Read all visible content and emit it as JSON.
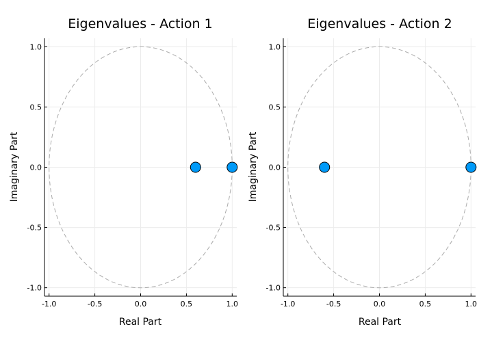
{
  "chart_data": [
    {
      "type": "scatter",
      "title": "Eigenvalues - Action 1",
      "xlabel": "Real Part",
      "ylabel": "Imaginary Part",
      "xlim": [
        -1.05,
        1.05
      ],
      "ylim": [
        -1.07,
        1.07
      ],
      "xticks": [
        -1.0,
        -0.5,
        0.0,
        0.5,
        1.0
      ],
      "xtick_labels": [
        "-1.0",
        "-0.5",
        "0.0",
        "0.5",
        "1.0"
      ],
      "yticks": [
        -1.0,
        -0.5,
        0.0,
        0.5,
        1.0
      ],
      "ytick_labels": [
        "-1.0",
        "-0.5",
        "0.0",
        "0.5",
        "1.0"
      ],
      "grid": true,
      "reference_curve": "unit-circle-dashed",
      "points": [
        {
          "x": 0.6,
          "y": 0.0
        },
        {
          "x": 1.0,
          "y": 0.0
        }
      ]
    },
    {
      "type": "scatter",
      "title": "Eigenvalues - Action 2",
      "xlabel": "Real Part",
      "ylabel": "Imaginary Part",
      "xlim": [
        -1.05,
        1.05
      ],
      "ylim": [
        -1.07,
        1.07
      ],
      "xticks": [
        -1.0,
        -0.5,
        0.0,
        0.5,
        1.0
      ],
      "xtick_labels": [
        "-1.0",
        "-0.5",
        "0.0",
        "0.5",
        "1.0"
      ],
      "yticks": [
        -1.0,
        -0.5,
        0.0,
        0.5,
        1.0
      ],
      "ytick_labels": [
        "-1.0",
        "-0.5",
        "0.0",
        "0.5",
        "1.0"
      ],
      "grid": true,
      "reference_curve": "unit-circle-dashed",
      "points": [
        {
          "x": -0.6,
          "y": 0.0
        },
        {
          "x": 1.0,
          "y": 0.0
        }
      ]
    }
  ],
  "colors": {
    "point_fill": "#009af9",
    "point_stroke": "#000000",
    "circle": "#aaaaaa",
    "grid": "#ececec",
    "axis": "#000000"
  }
}
